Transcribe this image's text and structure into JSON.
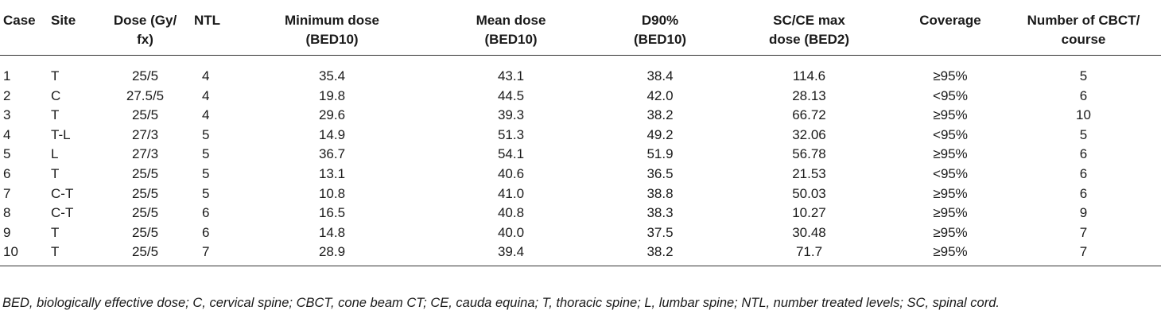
{
  "table": {
    "headers": [
      "Case",
      "Site",
      "Dose (Gy/ fx)",
      "NTL",
      "Minimum dose (BED10)",
      "Mean dose (BED10)",
      "D90% (BED10)",
      "SC/CE max dose (BED2)",
      "Coverage",
      "Number of CBCT/ course"
    ],
    "rows": [
      [
        "1",
        "T",
        "25/5",
        "4",
        "35.4",
        "43.1",
        "38.4",
        "114.6",
        "≥95%",
        "5"
      ],
      [
        "2",
        "C",
        "27.5/5",
        "4",
        "19.8",
        "44.5",
        "42.0",
        "28.13",
        "<95%",
        "6"
      ],
      [
        "3",
        "T",
        "25/5",
        "4",
        "29.6",
        "39.3",
        "38.2",
        "66.72",
        "≥95%",
        "10"
      ],
      [
        "4",
        "T-L",
        "27/3",
        "5",
        "14.9",
        "51.3",
        "49.2",
        "32.06",
        "<95%",
        "5"
      ],
      [
        "5",
        "L",
        "27/3",
        "5",
        "36.7",
        "54.1",
        "51.9",
        "56.78",
        "≥95%",
        "6"
      ],
      [
        "6",
        "T",
        "25/5",
        "5",
        "13.1",
        "40.6",
        "36.5",
        "21.53",
        "<95%",
        "6"
      ],
      [
        "7",
        "C-T",
        "25/5",
        "5",
        "10.8",
        "41.0",
        "38.8",
        "50.03",
        "≥95%",
        "6"
      ],
      [
        "8",
        "C-T",
        "25/5",
        "6",
        "16.5",
        "40.8",
        "38.3",
        "10.27",
        "≥95%",
        "9"
      ],
      [
        "9",
        "T",
        "25/5",
        "6",
        "14.8",
        "40.0",
        "37.5",
        "30.48",
        "≥95%",
        "7"
      ],
      [
        "10",
        "T",
        "25/5",
        "7",
        "28.9",
        "39.4",
        "38.2",
        "71.7",
        "≥95%",
        "7"
      ]
    ]
  },
  "footnote": "BED, biologically effective dose; C, cervical spine; CBCT, cone beam CT; CE, cauda equina; T, thoracic spine; L, lumbar spine; NTL, number treated levels; SC, spinal cord."
}
